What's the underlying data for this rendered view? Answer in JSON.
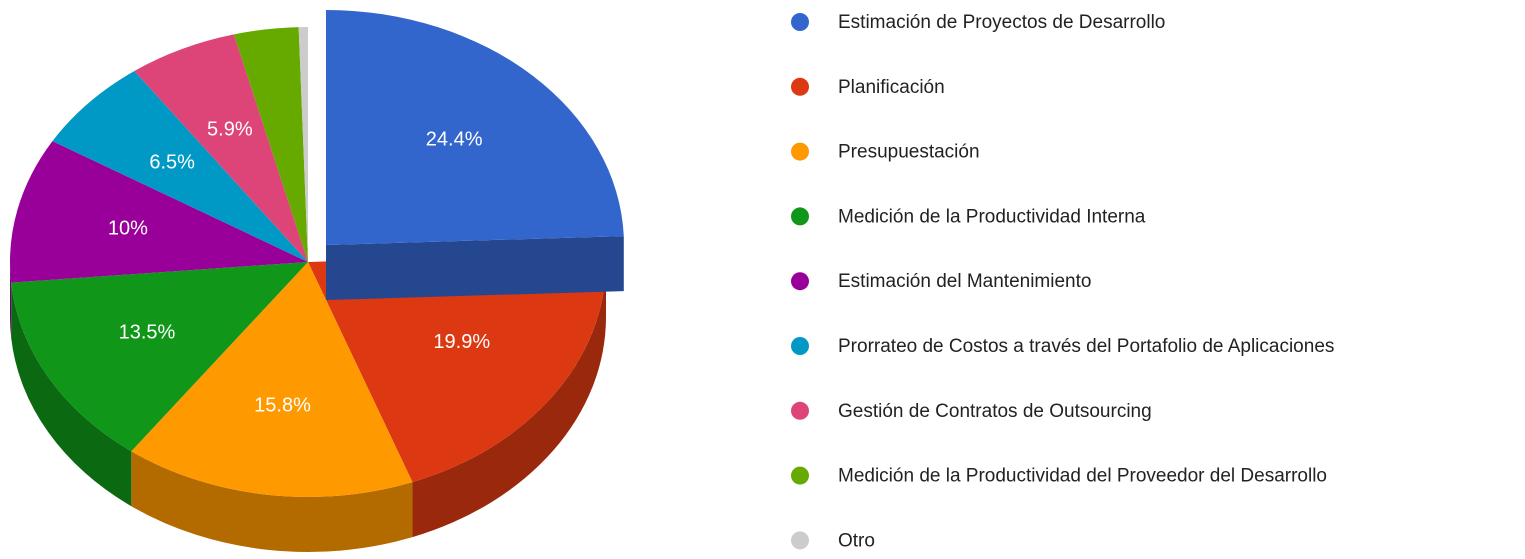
{
  "chart_data": {
    "type": "pie",
    "is3d": true,
    "explode_index": 0,
    "legend": "right",
    "categories": [
      "Estimación de Proyectos de Desarrollo",
      "Planificación",
      "Presupuestación",
      "Medición de la Productividad Interna",
      "Estimación del Mantenimiento",
      "Prorrateo de Costos a través del Portafolio de Aplicaciones",
      "Gestión de Contratos de Outsourcing",
      "Medición de la Productividad del Proveedor del Desarrollo",
      "Otro"
    ],
    "values": [
      24.4,
      19.9,
      15.8,
      13.5,
      10,
      6.5,
      5.9,
      3.5,
      0.5
    ],
    "value_labels": [
      "24.4%",
      "19.9%",
      "15.8%",
      "13.5%",
      "10%",
      "6.5%",
      "5.9%",
      null,
      null
    ],
    "colors": [
      "#3366cc",
      "#dc3912",
      "#ff9900",
      "#109618",
      "#990099",
      "#0099c6",
      "#dd4477",
      "#66aa00",
      "#cccccc"
    ]
  }
}
